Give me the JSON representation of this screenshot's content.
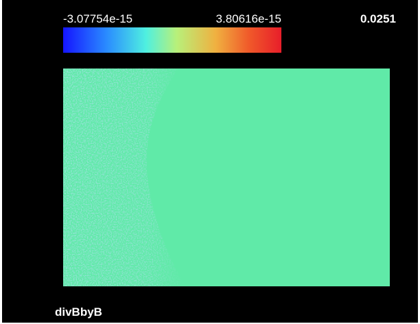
{
  "colorbar": {
    "min_label": "-3.07754e-15",
    "max_label": "3.80616e-15"
  },
  "time": "0.0251",
  "field_name": "divBbyB"
}
